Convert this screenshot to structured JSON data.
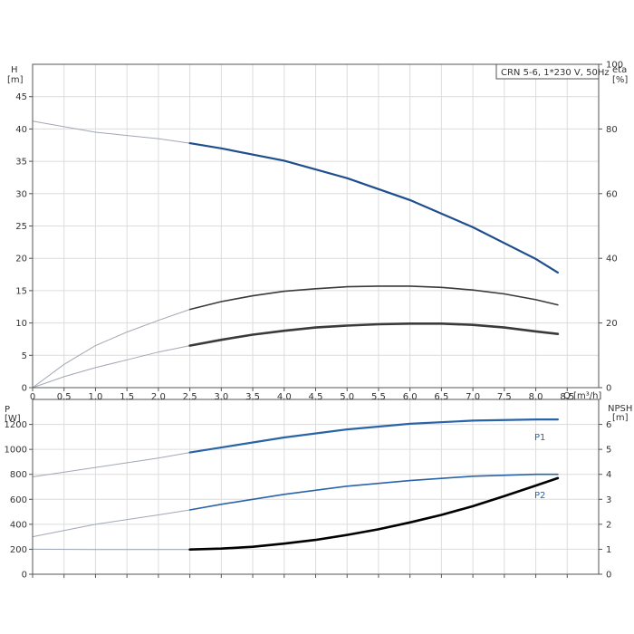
{
  "title": "CRN 5-6, 1*230 V, 50Hz",
  "colors": {
    "head": "#1f4e8c",
    "eta": "#3a3a3a",
    "p1": "#2a64a8",
    "p2": "#2a64a8",
    "npsh": "#000000",
    "extrapolated": "#a0a8b4",
    "grid": "#dcdcdc"
  },
  "top_axes": {
    "left_label_1": "H",
    "left_label_2": "[m]",
    "right_label_1": "eta",
    "right_label_2": "[%]",
    "x_label": "Q [m³/h]"
  },
  "bottom_axes": {
    "left_label_1": "P",
    "left_label_2": "[W]",
    "right_label_1": "NPSH",
    "right_label_2": "[m]"
  },
  "chart_data": [
    {
      "type": "line",
      "title": "CRN 5-6, 1*230 V, 50Hz",
      "xlabel": "Q [m³/h]",
      "ylabel": "H [m]",
      "y2label": "eta [%]",
      "xlim": [
        0,
        9
      ],
      "ylim": [
        0,
        50
      ],
      "y2lim": [
        0,
        100
      ],
      "x_ticks": [
        0,
        0.5,
        1.0,
        1.5,
        2.0,
        2.5,
        3.0,
        3.5,
        4.0,
        4.5,
        5.0,
        5.5,
        6.0,
        6.5,
        7.0,
        7.5,
        8.0,
        8.5
      ],
      "x_tick_labels": [
        "0",
        "0.5",
        "1.0",
        "1.5",
        "2.0",
        "2.5",
        "3.0",
        "3.5",
        "4.0",
        "4.5",
        "5.0",
        "5.5",
        "6.0",
        "6.5",
        "7.0",
        "7.5",
        "8.0",
        "8.5"
      ],
      "y_ticks": [
        0,
        5,
        10,
        15,
        20,
        25,
        30,
        35,
        40,
        45
      ],
      "y2_ticks": [
        0,
        20,
        40,
        60,
        80,
        100
      ],
      "series": [
        {
          "key": "head",
          "axis": "left",
          "x": [
            0,
            1,
            2,
            2.5,
            3,
            4,
            5,
            6,
            7,
            8,
            8.35
          ],
          "y": [
            41.2,
            39.5,
            38.5,
            37.8,
            37.0,
            35.1,
            32.4,
            29.0,
            24.8,
            19.9,
            17.8
          ],
          "width": 2.2
        },
        {
          "key": "eta_upper",
          "axis": "left",
          "x": [
            0,
            0.5,
            1,
            1.5,
            2,
            2.5,
            3,
            3.5,
            4,
            4.5,
            5,
            5.5,
            6,
            6.5,
            7,
            7.5,
            8,
            8.35
          ],
          "y": [
            0,
            3.6,
            6.5,
            8.6,
            10.4,
            12.1,
            13.3,
            14.2,
            14.9,
            15.3,
            15.6,
            15.7,
            15.7,
            15.5,
            15.1,
            14.5,
            13.6,
            12.8
          ],
          "width": 1.6
        },
        {
          "key": "eta_lower",
          "axis": "left",
          "x": [
            0,
            0.5,
            1,
            1.5,
            2,
            2.5,
            3,
            3.5,
            4,
            4.5,
            5,
            5.5,
            6,
            6.5,
            7,
            7.5,
            8,
            8.35
          ],
          "y": [
            0,
            1.7,
            3.1,
            4.3,
            5.5,
            6.5,
            7.4,
            8.2,
            8.8,
            9.3,
            9.6,
            9.8,
            9.9,
            9.9,
            9.7,
            9.3,
            8.7,
            8.3
          ],
          "width": 2.6
        }
      ]
    },
    {
      "type": "line",
      "xlabel": "",
      "ylabel": "P [W]",
      "y2label": "NPSH [m]",
      "xlim": [
        0,
        9
      ],
      "ylim": [
        0,
        1400
      ],
      "y2lim": [
        0,
        7
      ],
      "x_ticks": [
        0,
        0.5,
        1.0,
        1.5,
        2.0,
        2.5,
        3.0,
        3.5,
        4.0,
        4.5,
        5.0,
        5.5,
        6.0,
        6.5,
        7.0,
        7.5,
        8.0,
        8.5
      ],
      "y_ticks": [
        0,
        200,
        400,
        600,
        800,
        1000,
        1200
      ],
      "y2_ticks": [
        0,
        1,
        2,
        3,
        4,
        5,
        6
      ],
      "series": [
        {
          "key": "p1",
          "name": "P1",
          "axis": "left",
          "x": [
            0,
            1,
            2,
            2.5,
            3,
            4,
            5,
            6,
            7,
            8,
            8.35
          ],
          "y": [
            780,
            855,
            930,
            975,
            1015,
            1095,
            1160,
            1205,
            1230,
            1240,
            1240
          ],
          "width": 2.2
        },
        {
          "key": "p2",
          "name": "P2",
          "axis": "left",
          "x": [
            0,
            1,
            2,
            2.5,
            3,
            4,
            5,
            6,
            7,
            8,
            8.35
          ],
          "y": [
            300,
            400,
            475,
            515,
            560,
            640,
            705,
            750,
            785,
            800,
            800
          ],
          "width": 1.6
        },
        {
          "key": "npsh",
          "axis": "left",
          "x": [
            0,
            1,
            2,
            2.5,
            3,
            3.5,
            4,
            4.5,
            5,
            5.5,
            6,
            6.5,
            7,
            7.5,
            8,
            8.35
          ],
          "y": [
            200,
            198,
            198,
            198,
            205,
            220,
            245,
            275,
            315,
            360,
            415,
            475,
            545,
            625,
            710,
            770
          ],
          "width": 2.6
        }
      ]
    }
  ]
}
